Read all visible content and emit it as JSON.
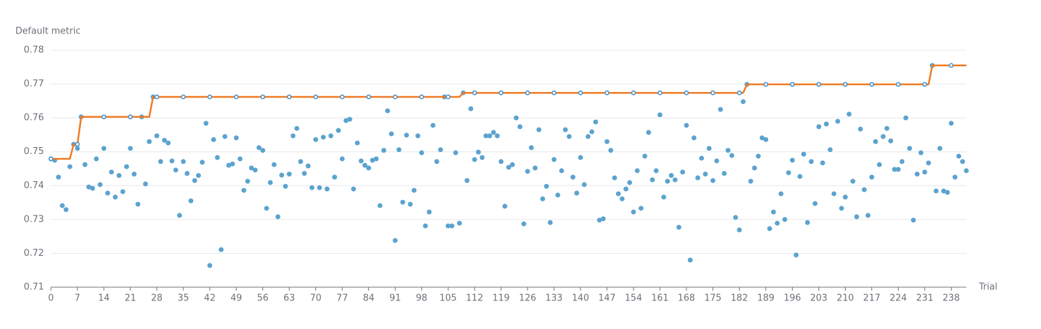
{
  "chart_data": {
    "type": "scatter",
    "ylabel": "Default metric",
    "xlabel": "Trial",
    "x": [
      0,
      1,
      2,
      3,
      4,
      5,
      6,
      7,
      8,
      9,
      10,
      11,
      12,
      13,
      14,
      15,
      16,
      17,
      18,
      19,
      20,
      21,
      22,
      23,
      24,
      25,
      26,
      27,
      28,
      29,
      30,
      31,
      32,
      33,
      34,
      35,
      36,
      37,
      38,
      39,
      40,
      41,
      42,
      43,
      44,
      45,
      46,
      47,
      48,
      49,
      50,
      51,
      52,
      53,
      54,
      55,
      56,
      57,
      58,
      59,
      60,
      61,
      62,
      63,
      64,
      65,
      66,
      67,
      68,
      69,
      70,
      71,
      72,
      73,
      74,
      75,
      76,
      77,
      78,
      79,
      80,
      81,
      82,
      83,
      84,
      85,
      86,
      87,
      88,
      89,
      90,
      91,
      92,
      93,
      94,
      95,
      96,
      97,
      98,
      99,
      100,
      101,
      102,
      103,
      104,
      105,
      106,
      107,
      108,
      109,
      110,
      111,
      112,
      113,
      114,
      115,
      116,
      117,
      118,
      119,
      120,
      121,
      122,
      123,
      124,
      125,
      126,
      127,
      128,
      129,
      130,
      131,
      132,
      133,
      134,
      135,
      136,
      137,
      138,
      139,
      140,
      141,
      142,
      143,
      144,
      145,
      146,
      147,
      148,
      149,
      150,
      151,
      152,
      153,
      154,
      155,
      156,
      157,
      158,
      159,
      160,
      161,
      162,
      163,
      164,
      165,
      166,
      167,
      168,
      169,
      170,
      171,
      172,
      173,
      174,
      175,
      176,
      177,
      178,
      179,
      180,
      181,
      182,
      183,
      184,
      185,
      186,
      187,
      188,
      189,
      190,
      191,
      192,
      193,
      194,
      195,
      196,
      197,
      198,
      199,
      200,
      201,
      202,
      203,
      204,
      205,
      206,
      207,
      208,
      209,
      210,
      211,
      212,
      213,
      214,
      215,
      216,
      217,
      218,
      219,
      220,
      221,
      222,
      223,
      224,
      225,
      226,
      227,
      228,
      229,
      230,
      231,
      232,
      233,
      234,
      235,
      236,
      237,
      238,
      239,
      240,
      241,
      242
    ],
    "series": [
      {
        "type": "scatter",
        "color": "#5ba3cf",
        "values": [
          0.7479,
          0.7475,
          0.7425,
          0.7341,
          0.7329,
          0.7456,
          0.7522,
          0.751,
          0.7603,
          0.7462,
          0.7396,
          0.7392,
          0.7479,
          0.7403,
          0.751,
          0.7378,
          0.744,
          0.7366,
          0.743,
          0.7382,
          0.7456,
          0.751,
          0.7434,
          0.7345,
          0.7603,
          0.7405,
          0.753,
          0.7662,
          0.7547,
          0.7471,
          0.7534,
          0.7526,
          0.7473,
          0.7446,
          0.7312,
          0.7471,
          0.7436,
          0.7355,
          0.7415,
          0.743,
          0.7469,
          0.7584,
          0.7164,
          0.7536,
          0.7483,
          0.7211,
          0.7545,
          0.746,
          0.7464,
          0.7541,
          0.7479,
          0.7386,
          0.7413,
          0.7452,
          0.7446,
          0.7512,
          0.7504,
          0.7333,
          0.7409,
          0.7462,
          0.7308,
          0.7431,
          0.7398,
          0.7434,
          0.7547,
          0.7569,
          0.7471,
          0.7436,
          0.7458,
          0.7394,
          0.7536,
          0.7394,
          0.7543,
          0.739,
          0.7547,
          0.7425,
          0.7563,
          0.7479,
          0.7592,
          0.7596,
          0.739,
          0.7526,
          0.7473,
          0.746,
          0.7452,
          0.7475,
          0.7479,
          0.7341,
          0.7504,
          0.7621,
          0.7553,
          0.7238,
          0.7506,
          0.7351,
          0.7549,
          0.7345,
          0.7386,
          0.7547,
          0.7497,
          0.7281,
          0.7322,
          0.7578,
          0.7471,
          0.7506,
          0.7662,
          0.7281,
          0.7281,
          0.7497,
          0.7289,
          0.7674,
          0.7415,
          0.7627,
          0.7477,
          0.7499,
          0.7483,
          0.7547,
          0.7547,
          0.7557,
          0.7547,
          0.7471,
          0.7339,
          0.7454,
          0.7462,
          0.76,
          0.7574,
          0.7287,
          0.7442,
          0.7512,
          0.7452,
          0.7565,
          0.7361,
          0.7398,
          0.7291,
          0.7477,
          0.7372,
          0.7444,
          0.7565,
          0.7545,
          0.7425,
          0.7378,
          0.7483,
          0.7403,
          0.7545,
          0.7559,
          0.7588,
          0.7298,
          0.7302,
          0.753,
          0.7504,
          0.7423,
          0.7376,
          0.7361,
          0.739,
          0.7409,
          0.7322,
          0.7444,
          0.7333,
          0.7487,
          0.7557,
          0.7417,
          0.7444,
          0.7609,
          0.7366,
          0.7413,
          0.743,
          0.7417,
          0.7277,
          0.744,
          0.7578,
          0.718,
          0.7541,
          0.7423,
          0.7481,
          0.7434,
          0.751,
          0.7415,
          0.7473,
          0.7625,
          0.7436,
          0.7504,
          0.7489,
          0.7306,
          0.7269,
          0.7648,
          0.7699,
          0.7413,
          0.7452,
          0.7487,
          0.7541,
          0.7536,
          0.7273,
          0.7322,
          0.7289,
          0.7376,
          0.73,
          0.7438,
          0.7475,
          0.7195,
          0.7427,
          0.7493,
          0.7291,
          0.7471,
          0.7347,
          0.7574,
          0.7467,
          0.7582,
          0.7506,
          0.7376,
          0.759,
          0.7333,
          0.7366,
          0.7611,
          0.7413,
          0.7308,
          0.7567,
          0.7388,
          0.7312,
          0.7425,
          0.753,
          0.7462,
          0.7545,
          0.7569,
          0.7532,
          0.7448,
          0.7448,
          0.7471,
          0.76,
          0.751,
          0.7298,
          0.7434,
          0.7497,
          0.744,
          0.7467,
          0.7755,
          0.7384,
          0.751,
          0.7384,
          0.738,
          0.7584,
          0.7425,
          0.7487,
          0.7471,
          0.7444
        ]
      },
      {
        "type": "line",
        "color": "#f07a22",
        "marker_color": "#4a90c4",
        "values": [
          0.7479,
          0.7479,
          0.7479,
          0.7479,
          0.7479,
          0.7479,
          0.7522,
          0.7522,
          0.7603,
          0.7603,
          0.7603,
          0.7603,
          0.7603,
          0.7603,
          0.7603,
          0.7603,
          0.7603,
          0.7603,
          0.7603,
          0.7603,
          0.7603,
          0.7603,
          0.7603,
          0.7603,
          0.7603,
          0.7603,
          0.7603,
          0.7662,
          0.7662,
          0.7662,
          0.7662,
          0.7662,
          0.7662,
          0.7662,
          0.7662,
          0.7662,
          0.7662,
          0.7662,
          0.7662,
          0.7662,
          0.7662,
          0.7662,
          0.7662,
          0.7662,
          0.7662,
          0.7662,
          0.7662,
          0.7662,
          0.7662,
          0.7662,
          0.7662,
          0.7662,
          0.7662,
          0.7662,
          0.7662,
          0.7662,
          0.7662,
          0.7662,
          0.7662,
          0.7662,
          0.7662,
          0.7662,
          0.7662,
          0.7662,
          0.7662,
          0.7662,
          0.7662,
          0.7662,
          0.7662,
          0.7662,
          0.7662,
          0.7662,
          0.7662,
          0.7662,
          0.7662,
          0.7662,
          0.7662,
          0.7662,
          0.7662,
          0.7662,
          0.7662,
          0.7662,
          0.7662,
          0.7662,
          0.7662,
          0.7662,
          0.7662,
          0.7662,
          0.7662,
          0.7662,
          0.7662,
          0.7662,
          0.7662,
          0.7662,
          0.7662,
          0.7662,
          0.7662,
          0.7662,
          0.7662,
          0.7662,
          0.7662,
          0.7662,
          0.7662,
          0.7662,
          0.7662,
          0.7662,
          0.7662,
          0.7662,
          0.7662,
          0.7674,
          0.7674,
          0.7674,
          0.7674,
          0.7674,
          0.7674,
          0.7674,
          0.7674,
          0.7674,
          0.7674,
          0.7674,
          0.7674,
          0.7674,
          0.7674,
          0.7674,
          0.7674,
          0.7674,
          0.7674,
          0.7674,
          0.7674,
          0.7674,
          0.7674,
          0.7674,
          0.7674,
          0.7674,
          0.7674,
          0.7674,
          0.7674,
          0.7674,
          0.7674,
          0.7674,
          0.7674,
          0.7674,
          0.7674,
          0.7674,
          0.7674,
          0.7674,
          0.7674,
          0.7674,
          0.7674,
          0.7674,
          0.7674,
          0.7674,
          0.7674,
          0.7674,
          0.7674,
          0.7674,
          0.7674,
          0.7674,
          0.7674,
          0.7674,
          0.7674,
          0.7674,
          0.7674,
          0.7674,
          0.7674,
          0.7674,
          0.7674,
          0.7674,
          0.7674,
          0.7674,
          0.7674,
          0.7674,
          0.7674,
          0.7674,
          0.7674,
          0.7674,
          0.7674,
          0.7674,
          0.7674,
          0.7674,
          0.7674,
          0.7674,
          0.7674,
          0.7674,
          0.7699,
          0.7699,
          0.7699,
          0.7699,
          0.7699,
          0.7699,
          0.7699,
          0.7699,
          0.7699,
          0.7699,
          0.7699,
          0.7699,
          0.7699,
          0.7699,
          0.7699,
          0.7699,
          0.7699,
          0.7699,
          0.7699,
          0.7699,
          0.7699,
          0.7699,
          0.7699,
          0.7699,
          0.7699,
          0.7699,
          0.7699,
          0.7699,
          0.7699,
          0.7699,
          0.7699,
          0.7699,
          0.7699,
          0.7699,
          0.7699,
          0.7699,
          0.7699,
          0.7699,
          0.7699,
          0.7699,
          0.7699,
          0.7699,
          0.7699,
          0.7699,
          0.7699,
          0.7699,
          0.7699,
          0.7699,
          0.7699,
          0.7755,
          0.7755,
          0.7755,
          0.7755,
          0.7755,
          0.7755,
          0.7755,
          0.7755,
          0.7755,
          0.7755
        ]
      }
    ],
    "xlim": [
      0,
      242
    ],
    "xticks": [
      0,
      7,
      14,
      21,
      28,
      35,
      42,
      49,
      56,
      63,
      70,
      77,
      84,
      91,
      98,
      105,
      112,
      119,
      126,
      133,
      140,
      147,
      154,
      161,
      168,
      175,
      182,
      189,
      196,
      203,
      210,
      217,
      224,
      231,
      238
    ],
    "ylim": [
      0.71,
      0.78
    ],
    "yticks": [
      0.71,
      0.72,
      0.73,
      0.74,
      0.75,
      0.76,
      0.77,
      0.78
    ],
    "grid": true
  }
}
